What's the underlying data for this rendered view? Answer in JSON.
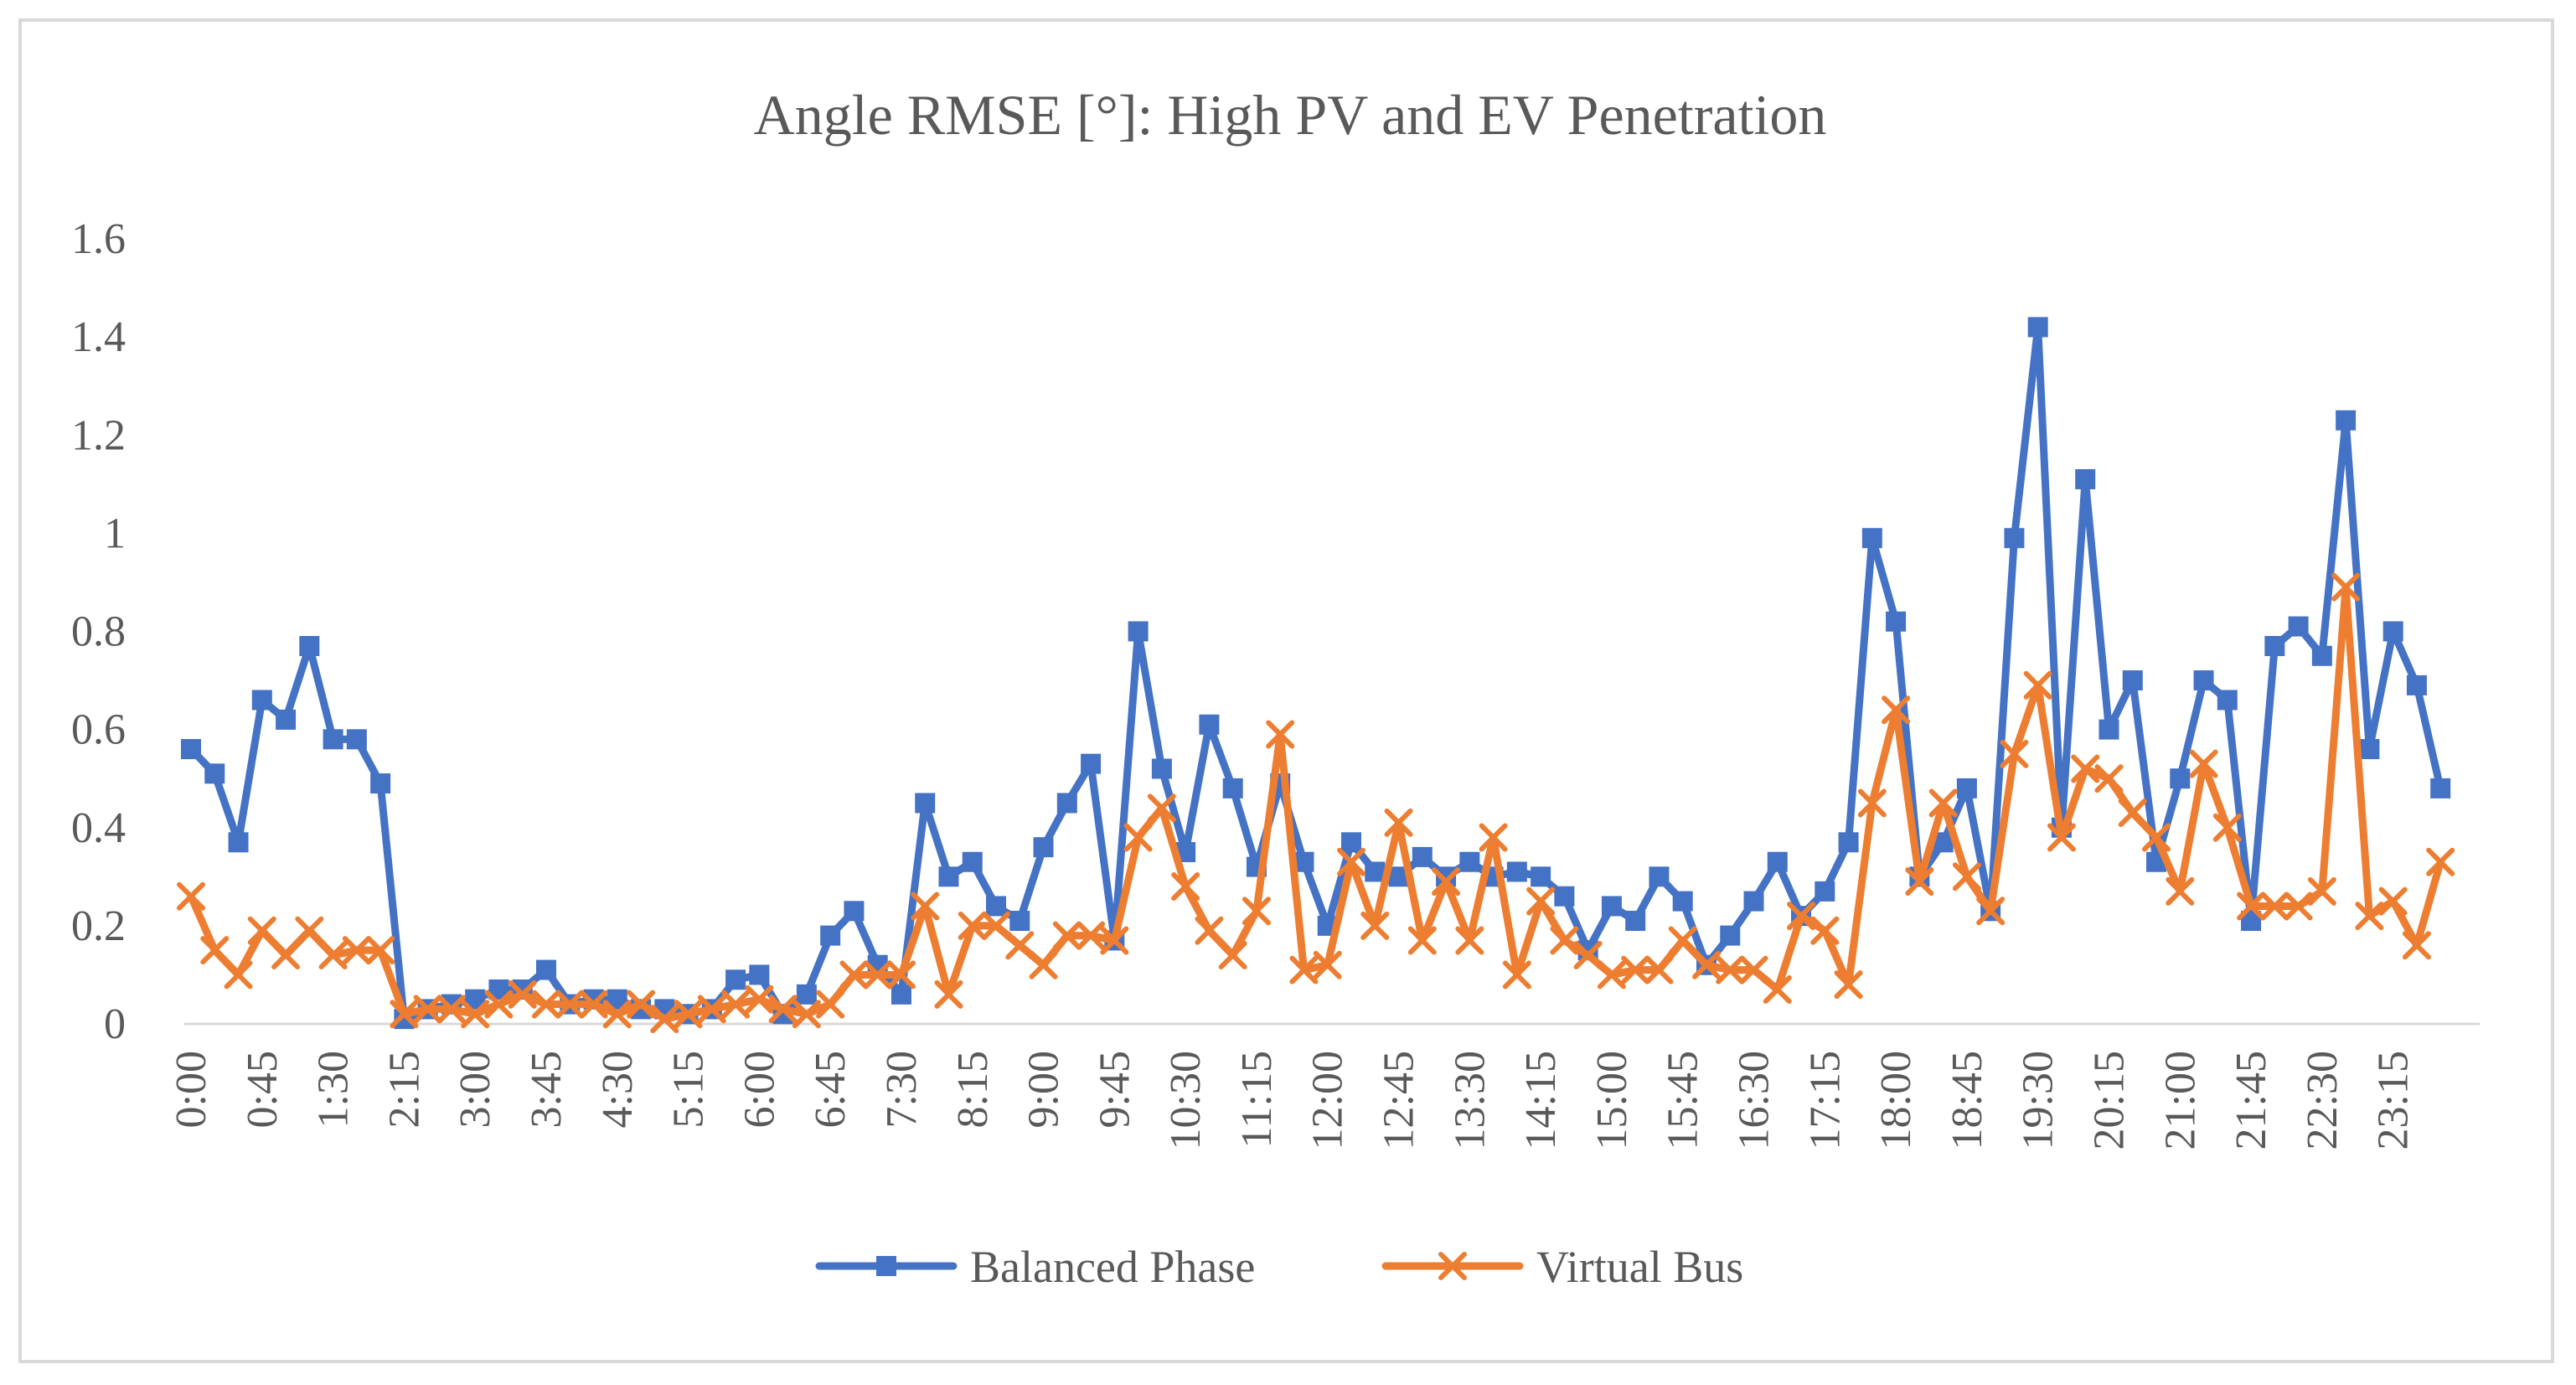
{
  "chart_data": {
    "type": "line",
    "title": "Angle RMSE [°]: High PV and EV Penetration",
    "xlabel": "",
    "ylabel": "",
    "ylim": [
      0,
      1.6
    ],
    "yticks": [
      "0",
      "0.2",
      "0.4",
      "0.6",
      "0.8",
      "1",
      "1.2",
      "1.4",
      "1.6"
    ],
    "grid": false,
    "legend": "bottom",
    "x": [
      "0:00",
      "0:15",
      "0:30",
      "0:45",
      "1:00",
      "1:15",
      "1:30",
      "1:45",
      "2:00",
      "2:15",
      "2:30",
      "2:45",
      "3:00",
      "3:15",
      "3:30",
      "3:45",
      "4:00",
      "4:15",
      "4:30",
      "4:45",
      "5:00",
      "5:15",
      "5:30",
      "5:45",
      "6:00",
      "6:15",
      "6:30",
      "6:45",
      "7:00",
      "7:15",
      "7:30",
      "7:45",
      "8:00",
      "8:15",
      "8:30",
      "8:45",
      "9:00",
      "9:15",
      "9:30",
      "9:45",
      "10:00",
      "10:15",
      "10:30",
      "10:45",
      "11:00",
      "11:15",
      "11:30",
      "11:45",
      "12:00",
      "12:15",
      "12:30",
      "12:45",
      "13:00",
      "13:15",
      "13:30",
      "13:45",
      "14:00",
      "14:15",
      "14:30",
      "14:45",
      "15:00",
      "15:15",
      "15:30",
      "15:45",
      "16:00",
      "16:15",
      "16:30",
      "16:45",
      "17:00",
      "17:15",
      "17:30",
      "17:45",
      "18:00",
      "18:15",
      "18:30",
      "18:45",
      "19:00",
      "19:15",
      "19:30",
      "19:45",
      "20:00",
      "20:15",
      "20:30",
      "20:45",
      "21:00",
      "21:15",
      "21:30",
      "21:45",
      "22:00",
      "22:15",
      "22:30",
      "22:45",
      "23:00",
      "23:15",
      "23:30",
      "23:45"
    ],
    "x_tick_labels": [
      "0:00",
      "0:45",
      "1:30",
      "2:15",
      "3:00",
      "3:45",
      "4:30",
      "5:15",
      "6:00",
      "6:45",
      "7:30",
      "8:15",
      "9:00",
      "9:45",
      "10:30",
      "11:15",
      "12:00",
      "12:45",
      "13:30",
      "14:15",
      "15:00",
      "15:45",
      "16:30",
      "17:15",
      "18:00",
      "18:45",
      "19:30",
      "20:15",
      "21:00",
      "21:45",
      "22:30",
      "23:15"
    ],
    "series": [
      {
        "name": "Balanced Phase",
        "color": "#4472c4",
        "marker": "square",
        "values": [
          0.56,
          0.51,
          0.37,
          0.66,
          0.62,
          0.77,
          0.58,
          0.58,
          0.49,
          0.01,
          0.03,
          0.04,
          0.05,
          0.07,
          0.07,
          0.11,
          0.04,
          0.05,
          0.05,
          0.03,
          0.03,
          0.02,
          0.03,
          0.09,
          0.1,
          0.02,
          0.06,
          0.18,
          0.23,
          0.12,
          0.06,
          0.45,
          0.3,
          0.33,
          0.24,
          0.21,
          0.36,
          0.45,
          0.53,
          0.17,
          0.8,
          0.52,
          0.35,
          0.61,
          0.48,
          0.32,
          0.49,
          0.33,
          0.2,
          0.37,
          0.31,
          0.3,
          0.34,
          0.3,
          0.33,
          0.3,
          0.31,
          0.3,
          0.26,
          0.15,
          0.24,
          0.21,
          0.3,
          0.25,
          0.12,
          0.18,
          0.25,
          0.33,
          0.22,
          0.27,
          0.37,
          0.99,
          0.82,
          0.3,
          0.37,
          0.48,
          0.23,
          0.99,
          1.42,
          0.4,
          1.11,
          0.6,
          0.7,
          0.33,
          0.5,
          0.7,
          0.66,
          0.21,
          0.77,
          0.81,
          0.75,
          1.23,
          0.56,
          0.8,
          0.69,
          0.48
        ]
      },
      {
        "name": "Virtual Bus",
        "color": "#ed7d31",
        "marker": "x",
        "values": [
          0.26,
          0.15,
          0.1,
          0.19,
          0.14,
          0.19,
          0.14,
          0.15,
          0.15,
          0.02,
          0.03,
          0.03,
          0.02,
          0.04,
          0.06,
          0.04,
          0.04,
          0.04,
          0.02,
          0.04,
          0.01,
          0.02,
          0.03,
          0.04,
          0.05,
          0.03,
          0.02,
          0.04,
          0.1,
          0.1,
          0.1,
          0.24,
          0.06,
          0.2,
          0.2,
          0.16,
          0.12,
          0.18,
          0.18,
          0.17,
          0.38,
          0.44,
          0.28,
          0.19,
          0.14,
          0.23,
          0.59,
          0.11,
          0.12,
          0.33,
          0.2,
          0.41,
          0.17,
          0.29,
          0.17,
          0.38,
          0.1,
          0.25,
          0.17,
          0.14,
          0.1,
          0.11,
          0.11,
          0.17,
          0.12,
          0.11,
          0.11,
          0.07,
          0.22,
          0.19,
          0.08,
          0.45,
          0.64,
          0.29,
          0.45,
          0.3,
          0.23,
          0.55,
          0.69,
          0.38,
          0.52,
          0.5,
          0.43,
          0.38,
          0.27,
          0.53,
          0.4,
          0.24,
          0.24,
          0.24,
          0.27,
          0.89,
          0.22,
          0.25,
          0.16,
          0.33
        ]
      }
    ]
  }
}
